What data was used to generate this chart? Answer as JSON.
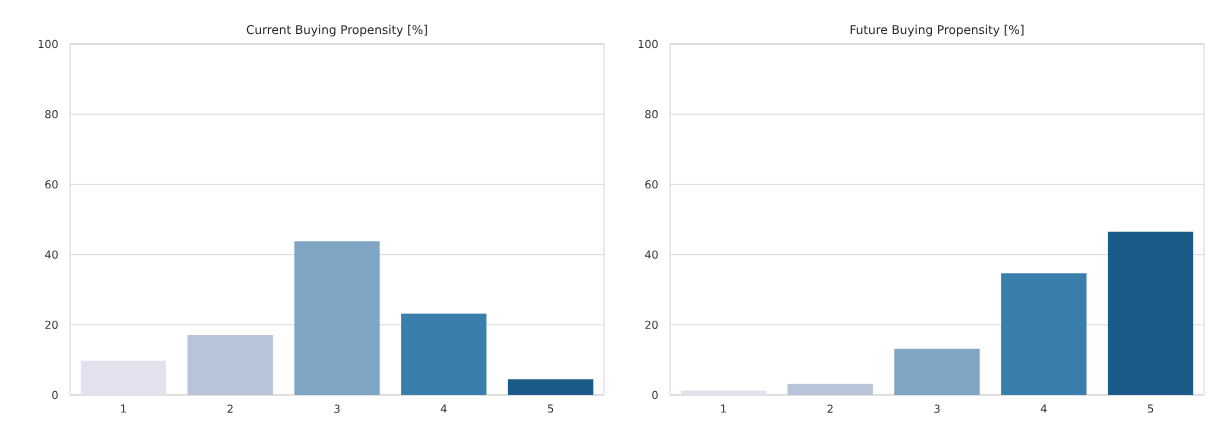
{
  "chart_data": [
    {
      "type": "bar",
      "title": "Current Buying Propensity [%]",
      "categories": [
        "1",
        "2",
        "3",
        "4",
        "5"
      ],
      "values": [
        9.8,
        17.1,
        43.8,
        23.2,
        4.5
      ],
      "colors": [
        "#e2e1ee",
        "#b7c4d9",
        "#7ea6c4",
        "#3a7fab",
        "#1a5b87"
      ],
      "ylim": [
        0,
        100
      ],
      "yticks": [
        0,
        20,
        40,
        60,
        80,
        100
      ],
      "grid": "y"
    },
    {
      "type": "bar",
      "title": "Future Buying Propensity [%]",
      "categories": [
        "1",
        "2",
        "3",
        "4",
        "5"
      ],
      "values": [
        1.3,
        3.2,
        13.2,
        34.7,
        46.5
      ],
      "colors": [
        "#e2e1ee",
        "#b7c4d9",
        "#7ea6c4",
        "#3a7fab",
        "#1a5b87"
      ],
      "ylim": [
        0,
        100
      ],
      "yticks": [
        0,
        20,
        40,
        60,
        80,
        100
      ],
      "grid": "y"
    }
  ]
}
